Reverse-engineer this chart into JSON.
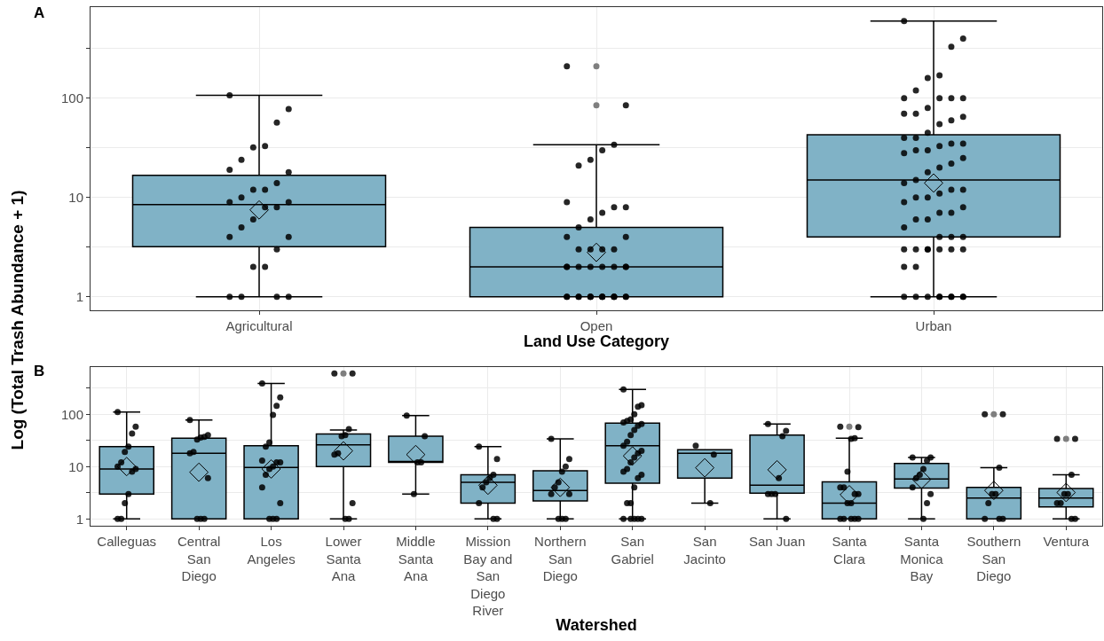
{
  "chart_data": [
    {
      "type": "box",
      "title": "A",
      "xlabel": "Land Use Category",
      "ylabel": "Log (Total Trash Abundance + 1)",
      "log": true,
      "grid": true,
      "marker": "circle",
      "color": "#80b2c6",
      "categories": [
        "Agricultural",
        "Open",
        "Urban"
      ],
      "ylim": [
        0.73,
        830
      ],
      "yticks": [
        1,
        {
          "value": 3.16,
          "label": null
        },
        10,
        {
          "value": 31.6,
          "label": null
        },
        100,
        {
          "value": 316,
          "label": null
        }
      ],
      "boxes": [
        {
          "low": 1,
          "q1": 3.2,
          "median": 8.5,
          "q3": 16.7,
          "high": 107,
          "mean": 7.5
        },
        {
          "low": 1,
          "q1": 1,
          "median": 2,
          "q3": 5,
          "high": 34,
          "mean": 2.8,
          "outliers": [
            210,
            85
          ]
        },
        {
          "low": 1,
          "q1": 4,
          "median": 15,
          "q3": 43,
          "high": 600,
          "mean": 14
        }
      ],
      "series": [
        {
          "type": "scatter",
          "color": "#000000",
          "x": [
            "Agricultural",
            "Agricultural",
            "Agricultural",
            "Agricultural",
            "Agricultural",
            "Agricultural",
            "Agricultural",
            "Agricultural",
            "Agricultural",
            "Agricultural",
            "Agricultural",
            "Agricultural",
            "Agricultural",
            "Agricultural",
            "Agricultural",
            "Agricultural",
            "Agricultural",
            "Agricultural",
            "Agricultural",
            "Agricultural",
            "Agricultural",
            "Agricultural",
            "Agricultural",
            "Agricultural",
            "Agricultural",
            "Agricultural",
            "Agricultural",
            "Open",
            "Open",
            "Open",
            "Open",
            "Open",
            "Open",
            "Open",
            "Open",
            "Open",
            "Open",
            "Open",
            "Open",
            "Open",
            "Open",
            "Open",
            "Open",
            "Open",
            "Open",
            "Open",
            "Open",
            "Open",
            "Open",
            "Open",
            "Open",
            "Open",
            "Open",
            "Open",
            "Open",
            "Open",
            "Open",
            "Open",
            "Open",
            "Open",
            "Open",
            "Open",
            "Open",
            "Open",
            "Open",
            "Open",
            "Open",
            "Open",
            "Urban",
            "Urban",
            "Urban",
            "Urban",
            "Urban",
            "Urban",
            "Urban",
            "Urban",
            "Urban",
            "Urban",
            "Urban",
            "Urban",
            "Urban",
            "Urban",
            "Urban",
            "Urban",
            "Urban",
            "Urban",
            "Urban",
            "Urban",
            "Urban",
            "Urban",
            "Urban",
            "Urban",
            "Urban",
            "Urban",
            "Urban",
            "Urban",
            "Urban",
            "Urban",
            "Urban",
            "Urban",
            "Urban",
            "Urban",
            "Urban",
            "Urban",
            "Urban",
            "Urban",
            "Urban",
            "Urban",
            "Urban",
            "Urban",
            "Urban",
            "Urban",
            "Urban",
            "Urban",
            "Urban",
            "Urban",
            "Urban",
            "Urban",
            "Urban",
            "Urban",
            "Urban",
            "Urban",
            "Urban",
            "Urban",
            "Urban",
            "Urban",
            "Urban",
            "Urban",
            "Urban",
            "Urban",
            "Urban",
            "Urban"
          ],
          "values": [
            107,
            78,
            57,
            33,
            32,
            24,
            19,
            18,
            14,
            12,
            12,
            10,
            9,
            9,
            8,
            8,
            6,
            5,
            4,
            4,
            3,
            2,
            2,
            1,
            1,
            1,
            1,
            210,
            85,
            34,
            30,
            24,
            21,
            9,
            8,
            8,
            7,
            6,
            5,
            4,
            4,
            3,
            3,
            3,
            3,
            2,
            2,
            2,
            2,
            2,
            2,
            2,
            2,
            1,
            1,
            1,
            1,
            1,
            1,
            1,
            1,
            1,
            1,
            1,
            1,
            1,
            1,
            1,
            600,
            400,
            330,
            170,
            160,
            120,
            100,
            100,
            100,
            100,
            80,
            70,
            70,
            65,
            60,
            55,
            45,
            40,
            40,
            35,
            35,
            33,
            30,
            30,
            28,
            25,
            22,
            20,
            18,
            15,
            14,
            12,
            12,
            11,
            10,
            10,
            9,
            8,
            7,
            7,
            6,
            6,
            5,
            4,
            4,
            4,
            3,
            3,
            3,
            3,
            3,
            3,
            3,
            2,
            2,
            1,
            1,
            1,
            1,
            1,
            1,
            1,
            1,
            1
          ]
        }
      ]
    },
    {
      "type": "box",
      "title": "B",
      "xlabel": "Watershed",
      "log": true,
      "grid": true,
      "marker": "circle",
      "color": "#80b2c6",
      "categories": [
        "Calleguas",
        "Central San Diego",
        "Los Angeles",
        "Lower Santa Ana",
        "Middle Santa Ana",
        "Mission Bay and San Diego River",
        "Northern San Diego",
        "San Gabriel",
        "San Jacinto",
        "San Juan",
        "Santa Clara",
        "Santa Monica Bay",
        "Southern San Diego",
        "Ventura"
      ],
      "ylim": [
        0.74,
        800
      ],
      "yticks": [
        1,
        {
          "value": 3.16,
          "label": null
        },
        10,
        {
          "value": 31.6,
          "label": null
        },
        100,
        {
          "value": 316,
          "label": null
        }
      ],
      "boxes": [
        {
          "low": 1,
          "q1": 3,
          "median": 9,
          "q3": 24,
          "high": 110,
          "mean": 10
        },
        {
          "low": 1,
          "q1": 1,
          "median": 18,
          "q3": 35,
          "high": 78,
          "mean": 7.8
        },
        {
          "low": 1,
          "q1": 1,
          "median": 9.6,
          "q3": 25,
          "high": 390,
          "mean": 9
        },
        {
          "low": 1,
          "q1": 10,
          "median": 26,
          "q3": 42,
          "high": 50,
          "mean": 20,
          "outliers": [
            600
          ]
        },
        {
          "low": 3,
          "q1": 12,
          "median": 12,
          "q3": 38,
          "high": 94,
          "mean": 17
        },
        {
          "low": 1,
          "q1": 2,
          "median": 5,
          "q3": 7,
          "high": 24,
          "mean": 4.4
        },
        {
          "low": 1,
          "q1": 2.2,
          "median": 3.5,
          "q3": 8.3,
          "high": 34,
          "mean": 4
        },
        {
          "low": 1,
          "q1": 4.8,
          "median": 25,
          "q3": 68,
          "high": 300,
          "mean": 16
        },
        {
          "low": 2,
          "q1": 6,
          "median": 18,
          "q3": 21,
          "high": 21,
          "mean": 9.5
        },
        {
          "low": 1,
          "q1": 3.1,
          "median": 4.4,
          "q3": 40,
          "high": 65,
          "mean": 8.7
        },
        {
          "low": 1,
          "q1": 1,
          "median": 2,
          "q3": 5.1,
          "high": 35,
          "mean": 2.9,
          "outliers": [
            58
          ]
        },
        {
          "low": 1,
          "q1": 3.9,
          "median": 5.8,
          "q3": 11.5,
          "high": 15,
          "mean": 5.7
        },
        {
          "low": 1,
          "q1": 1,
          "median": 2.5,
          "q3": 4,
          "high": 9.5,
          "mean": 3.5,
          "outliers": [
            100
          ]
        },
        {
          "low": 1,
          "q1": 1.7,
          "median": 2.5,
          "q3": 3.8,
          "high": 7,
          "mean": 3.2,
          "outliers": [
            34
          ]
        }
      ],
      "series": [
        {
          "type": "scatter",
          "color": "#000000",
          "x": [
            "Calleguas",
            "Calleguas",
            "Calleguas",
            "Calleguas",
            "Calleguas",
            "Calleguas",
            "Calleguas",
            "Calleguas",
            "Calleguas",
            "Calleguas",
            "Calleguas",
            "Calleguas",
            "Calleguas",
            "Central San Diego",
            "Central San Diego",
            "Central San Diego",
            "Central San Diego",
            "Central San Diego",
            "Central San Diego",
            "Central San Diego",
            "Central San Diego",
            "Central San Diego",
            "Central San Diego",
            "Central San Diego",
            "Los Angeles",
            "Los Angeles",
            "Los Angeles",
            "Los Angeles",
            "Los Angeles",
            "Los Angeles",
            "Los Angeles",
            "Los Angeles",
            "Los Angeles",
            "Los Angeles",
            "Los Angeles",
            "Los Angeles",
            "Los Angeles",
            "Los Angeles",
            "Los Angeles",
            "Los Angeles",
            "Los Angeles",
            "Lower Santa Ana",
            "Lower Santa Ana",
            "Lower Santa Ana",
            "Lower Santa Ana",
            "Lower Santa Ana",
            "Lower Santa Ana",
            "Lower Santa Ana",
            "Lower Santa Ana",
            "Lower Santa Ana",
            "Lower Santa Ana",
            "Middle Santa Ana",
            "Middle Santa Ana",
            "Middle Santa Ana",
            "Middle Santa Ana",
            "Middle Santa Ana",
            "Mission Bay and San Diego River",
            "Mission Bay and San Diego River",
            "Mission Bay and San Diego River",
            "Mission Bay and San Diego River",
            "Mission Bay and San Diego River",
            "Mission Bay and San Diego River",
            "Mission Bay and San Diego River",
            "Mission Bay and San Diego River",
            "Mission Bay and San Diego River",
            "Northern San Diego",
            "Northern San Diego",
            "Northern San Diego",
            "Northern San Diego",
            "Northern San Diego",
            "Northern San Diego",
            "Northern San Diego",
            "Northern San Diego",
            "Northern San Diego",
            "Northern San Diego",
            "Northern San Diego",
            "San Gabriel",
            "San Gabriel",
            "San Gabriel",
            "San Gabriel",
            "San Gabriel",
            "San Gabriel",
            "San Gabriel",
            "San Gabriel",
            "San Gabriel",
            "San Gabriel",
            "San Gabriel",
            "San Gabriel",
            "San Gabriel",
            "San Gabriel",
            "San Gabriel",
            "San Gabriel",
            "San Gabriel",
            "San Gabriel",
            "San Gabriel",
            "San Gabriel",
            "San Gabriel",
            "San Gabriel",
            "San Gabriel",
            "San Gabriel",
            "San Gabriel",
            "San Gabriel",
            "San Gabriel",
            "San Gabriel",
            "San Gabriel",
            "San Jacinto",
            "San Jacinto",
            "San Jacinto",
            "San Juan",
            "San Juan",
            "San Juan",
            "San Juan",
            "San Juan",
            "San Juan",
            "San Juan",
            "San Juan",
            "Santa Clara",
            "Santa Clara",
            "Santa Clara",
            "Santa Clara",
            "Santa Clara",
            "Santa Clara",
            "Santa Clara",
            "Santa Clara",
            "Santa Clara",
            "Santa Clara",
            "Santa Clara",
            "Santa Clara",
            "Santa Clara",
            "Santa Clara",
            "Santa Clara",
            "Santa Clara",
            "Santa Monica Bay",
            "Santa Monica Bay",
            "Santa Monica Bay",
            "Santa Monica Bay",
            "Santa Monica Bay",
            "Santa Monica Bay",
            "Santa Monica Bay",
            "Santa Monica Bay",
            "Santa Monica Bay",
            "Santa Monica Bay",
            "Southern San Diego",
            "Southern San Diego",
            "Southern San Diego",
            "Southern San Diego",
            "Southern San Diego",
            "Southern San Diego",
            "Southern San Diego",
            "Southern San Diego",
            "Southern San Diego",
            "Ventura",
            "Ventura",
            "Ventura",
            "Ventura",
            "Ventura",
            "Ventura",
            "Ventura",
            "Ventura",
            "Ventura"
          ],
          "values": [
            110,
            58,
            43,
            24,
            19,
            12,
            10,
            9,
            8,
            3,
            2,
            1,
            1,
            78,
            40,
            37,
            36,
            33,
            19,
            18,
            6,
            1,
            1,
            1,
            390,
            210,
            145,
            97,
            29,
            24,
            13,
            12,
            12,
            10,
            9,
            7,
            4,
            2,
            1,
            1,
            1,
            600,
            600,
            52,
            40,
            38,
            18,
            17,
            2,
            1,
            1,
            94,
            38,
            12,
            12,
            3,
            24,
            14,
            7,
            6,
            5,
            4,
            2,
            1,
            1,
            34,
            14,
            10,
            8,
            5,
            4,
            3,
            3,
            1,
            1,
            1,
            300,
            150,
            140,
            100,
            80,
            75,
            70,
            65,
            60,
            50,
            40,
            30,
            25,
            20,
            18,
            15,
            12,
            9,
            8,
            7,
            6,
            4,
            2,
            2,
            1,
            1,
            1,
            1,
            1,
            25,
            17,
            2,
            65,
            48,
            38,
            6,
            3,
            3,
            3,
            1,
            58,
            57,
            35,
            34,
            8,
            4,
            4,
            3,
            3,
            2,
            2,
            1,
            1,
            1,
            1,
            1,
            15,
            15,
            13,
            9,
            7,
            6,
            4,
            3,
            2,
            1,
            100,
            100,
            9.5,
            3,
            3,
            2,
            1,
            1,
            1,
            34,
            34,
            7,
            3,
            3,
            2,
            2,
            1,
            1
          ]
        }
      ]
    }
  ]
}
